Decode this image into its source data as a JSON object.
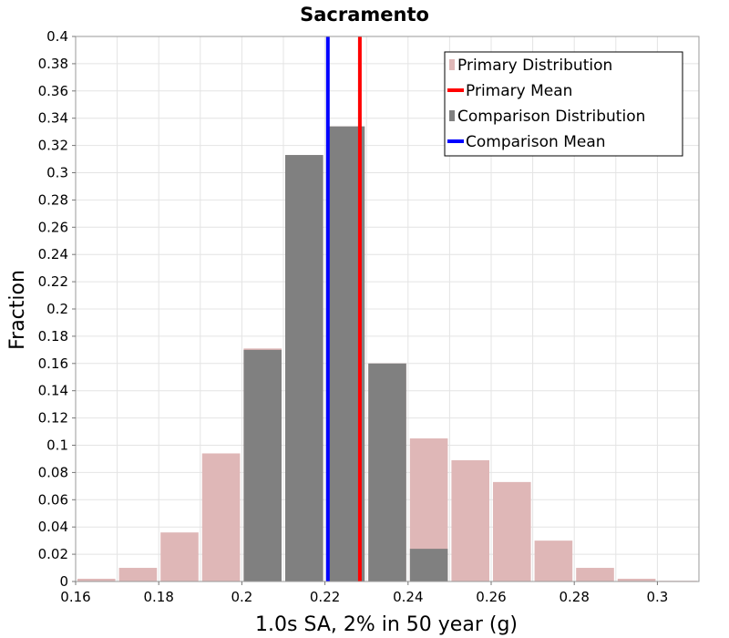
{
  "chart_data": {
    "type": "bar",
    "title": "Sacramento",
    "xlabel": "1.0s SA, 2% in 50 year (g)",
    "ylabel": "Fraction",
    "xlim": [
      0.16,
      0.31
    ],
    "ylim": [
      0,
      0.4
    ],
    "bin_width": 0.01,
    "x_ticks": [
      "0.16",
      "0.18",
      "0.2",
      "0.22",
      "0.24",
      "0.26",
      "0.28",
      "0.3"
    ],
    "y_ticks": [
      "0",
      "0.02",
      "0.04",
      "0.06",
      "0.08",
      "0.1",
      "0.12",
      "0.14",
      "0.16",
      "0.18",
      "0.2",
      "0.22",
      "0.24",
      "0.26",
      "0.28",
      "0.3",
      "0.32",
      "0.34",
      "0.36",
      "0.38",
      "0.4"
    ],
    "grid": true,
    "legend_position": "top-right",
    "colors": {
      "primary_distribution": "#dfb7b7",
      "primary_mean": "#ff0000",
      "comparison_distribution": "#808080",
      "comparison_mean": "#0000ff"
    },
    "legend": [
      {
        "label": "Primary Distribution",
        "kind": "box",
        "color": "#dfb7b7"
      },
      {
        "label": "Primary Mean",
        "kind": "line",
        "color": "#ff0000"
      },
      {
        "label": "Comparison Distribution",
        "kind": "box",
        "color": "#808080"
      },
      {
        "label": "Comparison Mean",
        "kind": "line",
        "color": "#0000ff"
      }
    ],
    "series": [
      {
        "name": "Primary Distribution",
        "color": "#dfb7b7",
        "bins": [
          {
            "start": 0.16,
            "value": 0.002
          },
          {
            "start": 0.17,
            "value": 0.01
          },
          {
            "start": 0.18,
            "value": 0.036
          },
          {
            "start": 0.19,
            "value": 0.094
          },
          {
            "start": 0.2,
            "value": 0.171
          },
          {
            "start": 0.21,
            "value": 0.313
          },
          {
            "start": 0.22,
            "value": 0.334
          },
          {
            "start": 0.23,
            "value": 0.16
          },
          {
            "start": 0.24,
            "value": 0.105
          },
          {
            "start": 0.25,
            "value": 0.089
          },
          {
            "start": 0.26,
            "value": 0.073
          },
          {
            "start": 0.27,
            "value": 0.03
          },
          {
            "start": 0.28,
            "value": 0.01
          },
          {
            "start": 0.29,
            "value": 0.002
          },
          {
            "start": 0.3,
            "value": 0.0005
          }
        ]
      },
      {
        "name": "Comparison Distribution",
        "color": "#808080",
        "bins": [
          {
            "start": 0.2,
            "value": 0.17
          },
          {
            "start": 0.21,
            "value": 0.313
          },
          {
            "start": 0.22,
            "value": 0.334
          },
          {
            "start": 0.23,
            "value": 0.16
          },
          {
            "start": 0.24,
            "value": 0.024
          }
        ]
      }
    ],
    "means": [
      {
        "name": "Primary Mean",
        "x": 0.2284,
        "color": "#ff0000"
      },
      {
        "name": "Comparison Mean",
        "x": 0.2207,
        "color": "#0000ff"
      }
    ]
  }
}
